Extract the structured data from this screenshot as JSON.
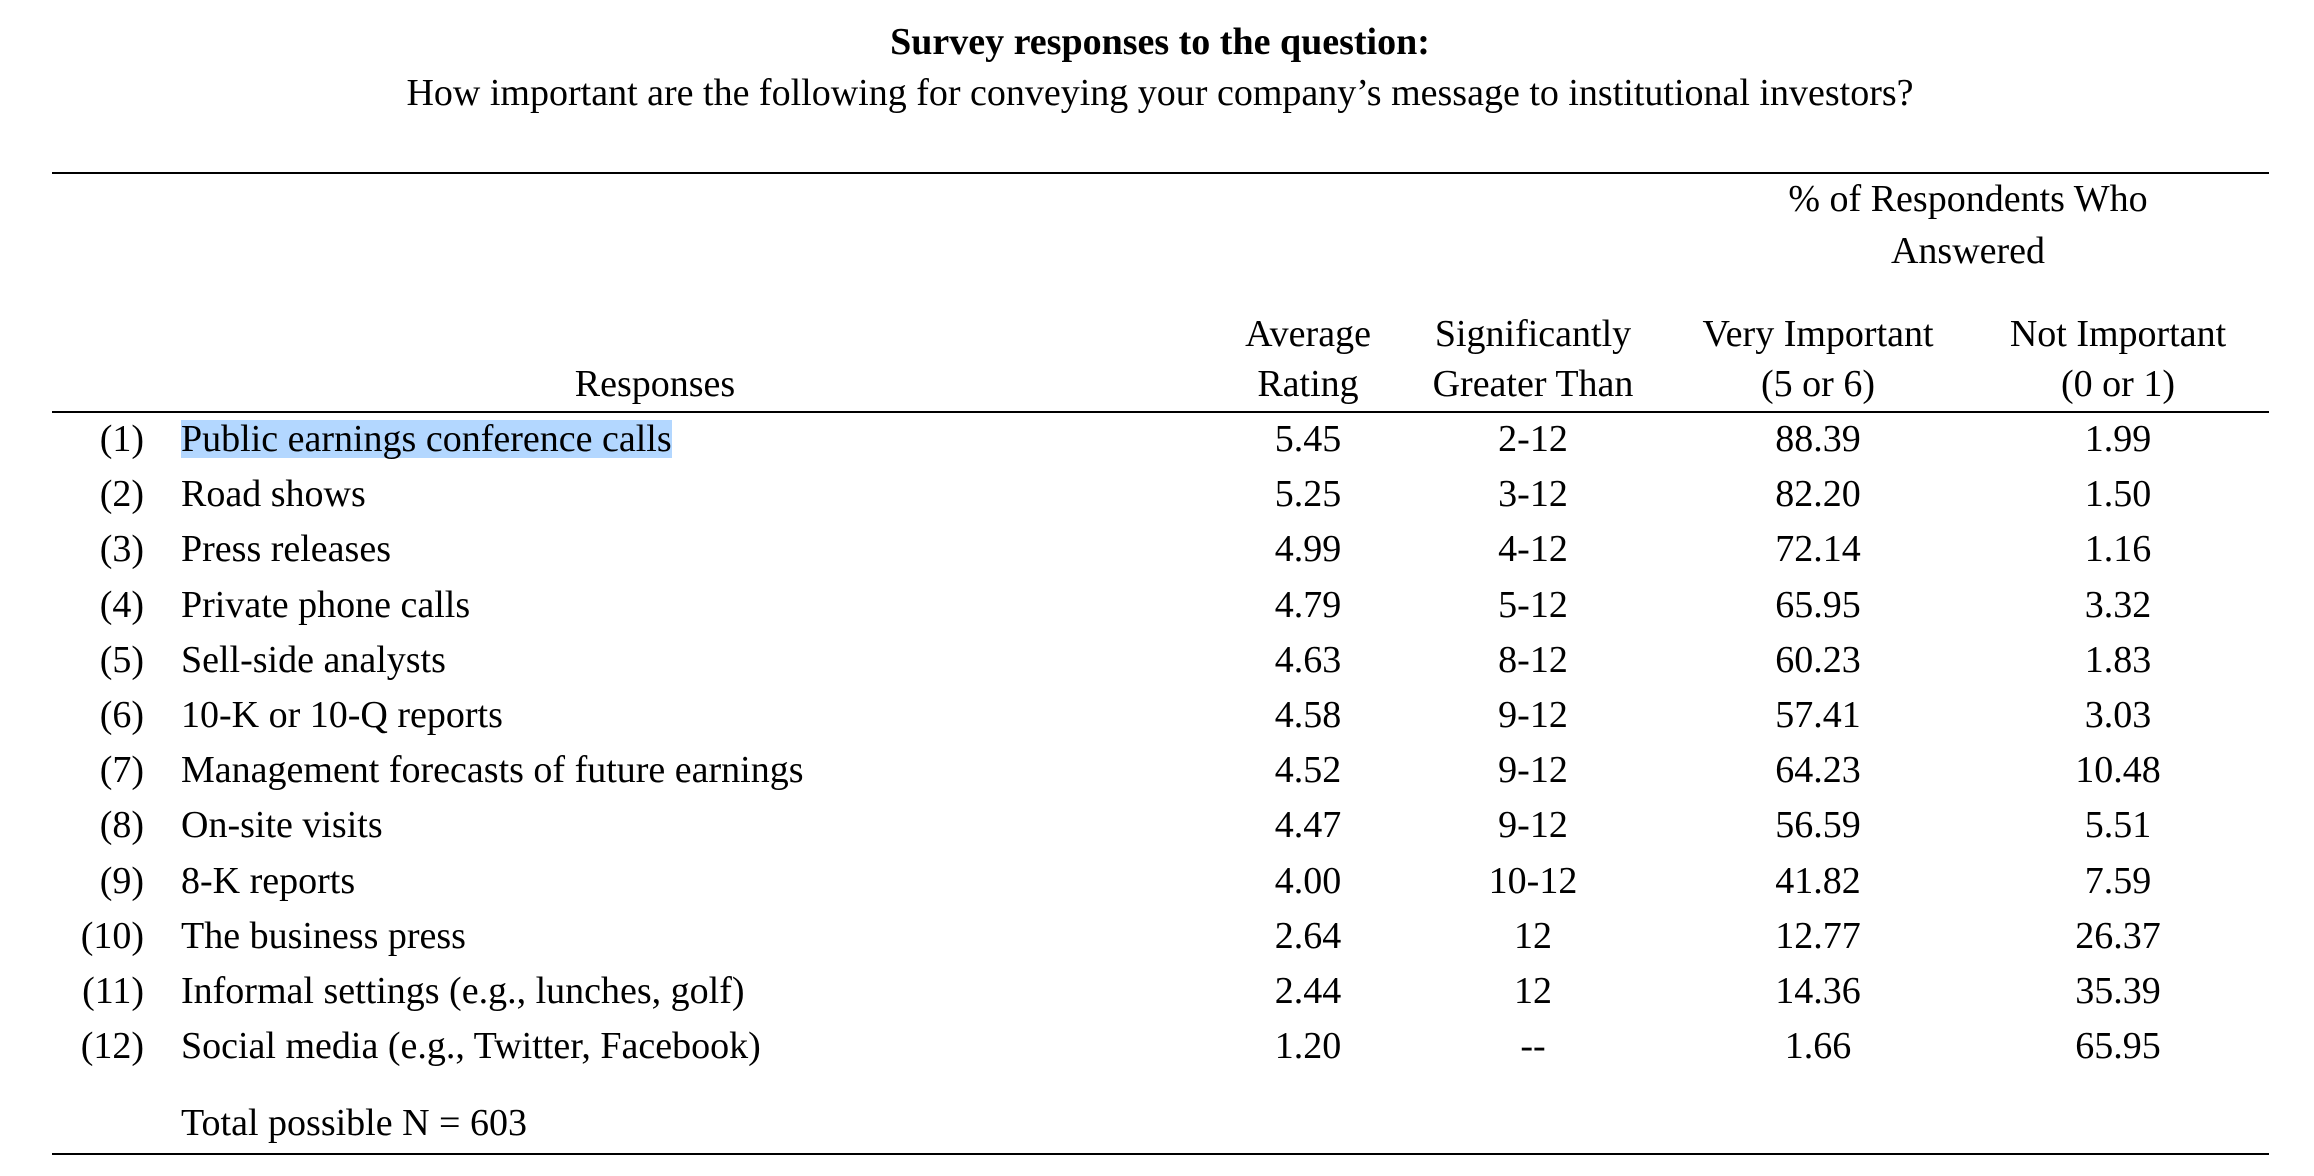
{
  "title": "Survey responses to the question:",
  "question": "How important are the following for conveying your company’s message to institutional investors?",
  "table": {
    "group_header": [
      "% of Respondents Who",
      "Answered"
    ],
    "columns": [
      [
        "Responses"
      ],
      [
        "Average",
        "Rating"
      ],
      [
        "Significantly",
        "Greater Than"
      ],
      [
        "Very Important",
        "(5 or 6)"
      ],
      [
        "Not Important",
        "(0 or 1)"
      ]
    ],
    "rows": [
      [
        "(1)",
        "Public earnings conference calls",
        "5.45",
        "2-12",
        "88.39",
        "1.99"
      ],
      [
        "(2)",
        "Road shows",
        "5.25",
        "3-12",
        "82.20",
        "1.50"
      ],
      [
        "(3)",
        "Press releases",
        "4.99",
        "4-12",
        "72.14",
        "1.16"
      ],
      [
        "(4)",
        "Private phone calls",
        "4.79",
        "5-12",
        "65.95",
        "3.32"
      ],
      [
        "(5)",
        "Sell-side analysts",
        "4.63",
        "8-12",
        "60.23",
        "1.83"
      ],
      [
        "(6)",
        "10-K or 10-Q reports",
        "4.58",
        "9-12",
        "57.41",
        "3.03"
      ],
      [
        "(7)",
        "Management forecasts of future earnings",
        "4.52",
        "9-12",
        "64.23",
        "10.48"
      ],
      [
        "(8)",
        "On-site visits",
        "4.47",
        "9-12",
        "56.59",
        "5.51"
      ],
      [
        "(9)",
        "8-K reports",
        "4.00",
        "10-12",
        "41.82",
        "7.59"
      ],
      [
        "(10)",
        "The business press",
        "2.64",
        "12",
        "12.77",
        "26.37"
      ],
      [
        "(11)",
        "Informal settings (e.g., lunches, golf)",
        "2.44",
        "12",
        "14.36",
        "35.39"
      ],
      [
        "(12)",
        "Social media (e.g., Twitter, Facebook)",
        "1.20",
        "--",
        "1.66",
        "65.95"
      ]
    ],
    "note": "Total possible N = 603"
  }
}
